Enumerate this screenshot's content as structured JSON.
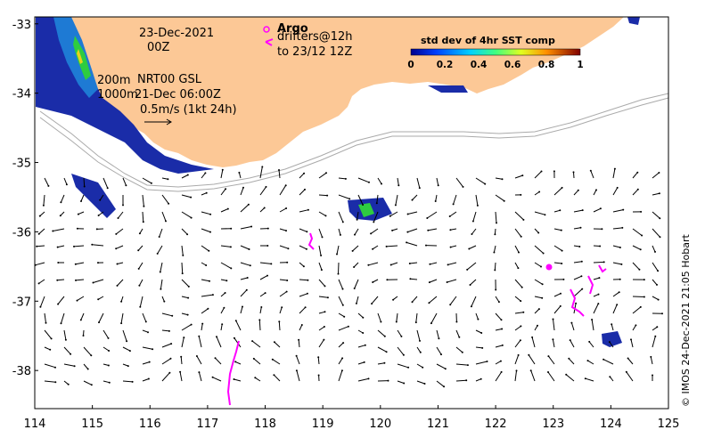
{
  "map": {
    "date_label": "23-Dec-2021",
    "time_label": "00Z",
    "argo_label": "Argo",
    "drifters_label": "drifters@12h",
    "drifters_to_label": "to 23/12 12Z",
    "contours_label_200": "200m",
    "contours_label_1000": "1000m",
    "nrt_label": "NRT00 GSL",
    "nrt_time_label": "21-Dec 06:00Z",
    "vector_scale_label": "0.5m/s (1kt 24h)",
    "credit": "© IMOS 24-Dec-2021 21:05 Hobart",
    "lon_ticks": [
      "114",
      "115",
      "116",
      "117",
      "118",
      "119",
      "120",
      "121",
      "122",
      "123",
      "124",
      "125"
    ],
    "lat_ticks": [
      "-33",
      "-34",
      "-35",
      "-36",
      "-37",
      "-38"
    ],
    "lon_range": [
      114,
      125
    ],
    "lat_range": [
      -38.55,
      -32.9
    ],
    "colorbar": {
      "title": "std dev of 4hr SST comp",
      "tick_labels": [
        "0",
        "0.2",
        "0.4",
        "0.6",
        "0.8",
        "1"
      ],
      "range": [
        0,
        1
      ]
    },
    "colors": {
      "land": "#fcc896",
      "argo": "#ff00ff",
      "drifters": "#ff00ff",
      "sst_low": "#1a2ca8",
      "sst_mid": "#2ecc40"
    }
  }
}
